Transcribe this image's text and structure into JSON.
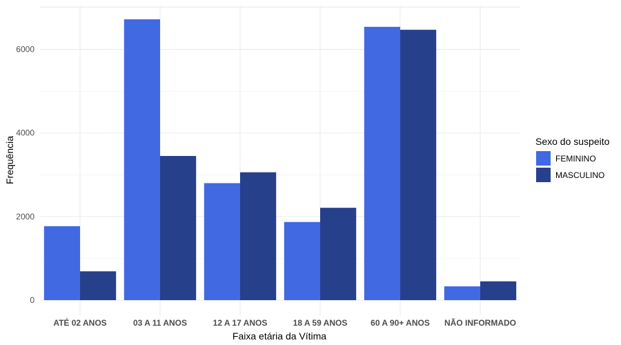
{
  "chart_data": {
    "type": "bar",
    "title": "",
    "xlabel": "Faixa etária da Vítima",
    "ylabel": "Frequência",
    "categories": [
      "ATÉ 02 ANOS",
      "03 A 11 ANOS",
      "12 A 17 ANOS",
      "18 A 59 ANOS",
      "60 A 90+ ANOS",
      "NÃO INFORMADO"
    ],
    "series": [
      {
        "name": "FEMININO",
        "color": "#4169E1",
        "values": [
          1770,
          6720,
          2800,
          1870,
          6540,
          330
        ]
      },
      {
        "name": "MASCULINO",
        "color": "#27408B",
        "values": [
          690,
          3450,
          3060,
          2210,
          6470,
          450
        ]
      }
    ],
    "ylim": [
      0,
      7050
    ],
    "yticks": [
      0,
      2000,
      4000,
      6000
    ],
    "grid": true,
    "legend": {
      "title": "Sexo do suspeito",
      "position": "right"
    }
  }
}
